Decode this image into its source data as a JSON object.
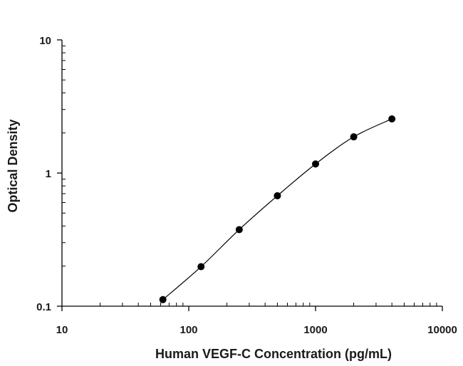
{
  "chart_data": {
    "type": "scatter",
    "title": "",
    "xlabel": "Human VEGF-C Concentration (pg/mL)",
    "ylabel": "Optical Density",
    "x_scale": "log",
    "y_scale": "log",
    "xlim": [
      10,
      10000
    ],
    "ylim": [
      0.1,
      10
    ],
    "x_ticks": [
      10,
      100,
      1000,
      10000
    ],
    "x_tick_labels": [
      "10",
      "100",
      "1000",
      "10000"
    ],
    "y_ticks": [
      0.1,
      1,
      10
    ],
    "y_tick_labels": [
      "0.1",
      "1",
      "10"
    ],
    "grid": false,
    "legend": "none",
    "series": [
      {
        "x": [
          62.5,
          125,
          250,
          500,
          1000,
          2000,
          4000
        ],
        "y": [
          0.112,
          0.198,
          0.376,
          0.675,
          1.17,
          1.87,
          2.55
        ],
        "marker": "filled-circle",
        "fit_line": true,
        "color": "#000000"
      }
    ]
  }
}
